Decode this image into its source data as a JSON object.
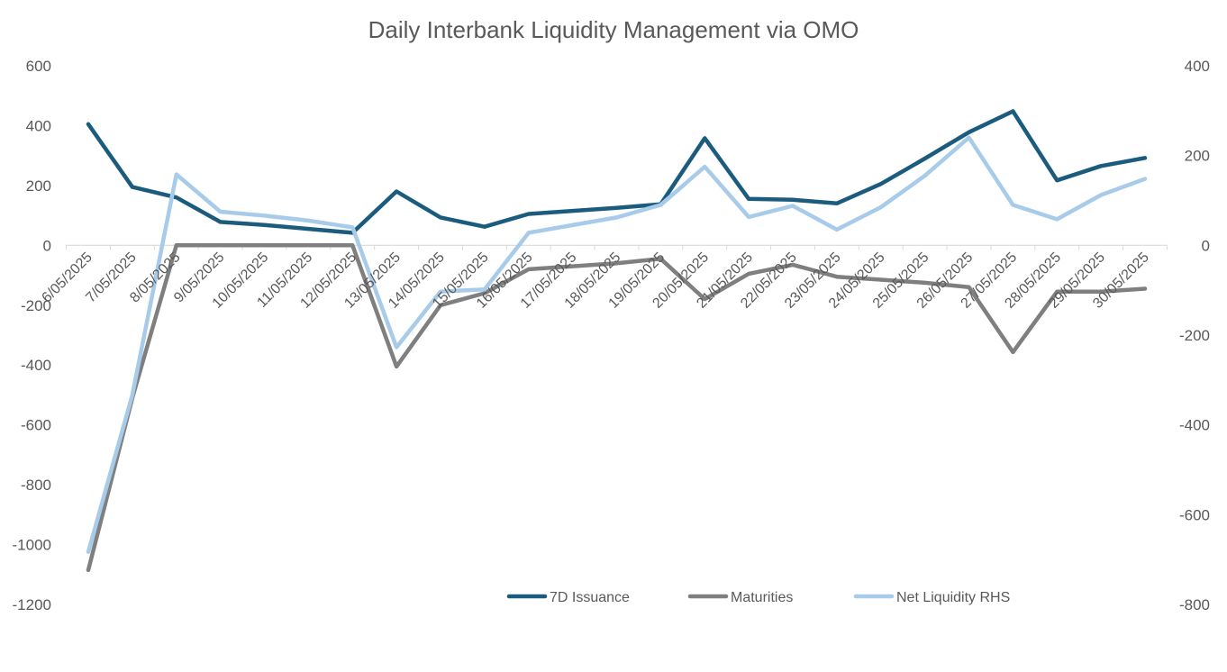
{
  "chart_data": {
    "type": "line",
    "title": "Daily Interbank Liquidity Management via OMO",
    "x": [
      "6/05/2025",
      "7/05/2025",
      "8/05/2025",
      "9/05/2025",
      "10/05/2025",
      "11/05/2025",
      "12/05/2025",
      "13/05/2025",
      "14/05/2025",
      "15/05/2025",
      "16/05/2025",
      "17/05/2025",
      "18/05/2025",
      "19/05/2025",
      "20/05/2025",
      "21/05/2025",
      "22/05/2025",
      "23/05/2025",
      "24/05/2025",
      "25/05/2025",
      "26/05/2025",
      "27/05/2025",
      "28/05/2025",
      "29/05/2025",
      "30/05/2025"
    ],
    "y_left": {
      "min": -1200,
      "max": 600,
      "ticks": [
        600,
        400,
        200,
        0,
        -200,
        -400,
        -600,
        -800,
        -1000,
        -1200
      ]
    },
    "y_right": {
      "min": -800,
      "max": 400,
      "ticks": [
        400,
        200,
        0,
        -200,
        -400,
        -600,
        -800
      ]
    },
    "series": [
      {
        "name": "7D Issuance",
        "axis": "left",
        "color": "#1b5c7e",
        "values": [
          405,
          195,
          160,
          78,
          68,
          55,
          42,
          180,
          93,
          62,
          105,
          115,
          125,
          137,
          358,
          155,
          152,
          140,
          205,
          290,
          378,
          448,
          217,
          265,
          292
        ]
      },
      {
        "name": "Maturities",
        "axis": "left",
        "color": "#7f7f7f",
        "values": [
          -1085,
          -510,
          0,
          0,
          0,
          0,
          0,
          -405,
          -200,
          -160,
          -80,
          -70,
          -60,
          -45,
          -180,
          -95,
          -65,
          -105,
          -115,
          -125,
          -140,
          -357,
          -155,
          -155,
          -145
        ]
      },
      {
        "name": "Net Liquidity RHS",
        "axis": "right",
        "color": "#a8cbea",
        "values": [
          -683,
          -333,
          158,
          75,
          66,
          55,
          40,
          -227,
          -103,
          -98,
          28,
          45,
          62,
          90,
          175,
          63,
          88,
          35,
          85,
          155,
          240,
          90,
          58,
          112,
          148
        ]
      }
    ],
    "legend": {
      "position": "bottom",
      "items": [
        "7D Issuance",
        "Maturities",
        "Net Liquidity RHS"
      ]
    }
  }
}
